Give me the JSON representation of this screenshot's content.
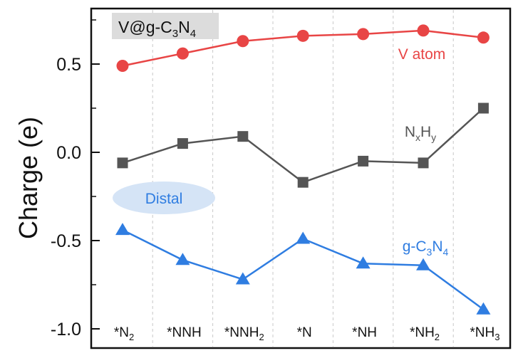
{
  "chart_data": {
    "type": "line",
    "title": "V@g-C3N4",
    "title_parts": {
      "main": "V@g-C",
      "sub1": "3",
      "mid": "N",
      "sub2": "4"
    },
    "xlabel": "",
    "ylabel": "Charge (e)",
    "ylim": [
      -1.05,
      0.8
    ],
    "yticks": [
      0.5,
      0.0,
      -0.5,
      -1.0
    ],
    "ytick_labels": [
      "0.5",
      "0.0",
      "-0.5",
      "-1.0"
    ],
    "categories": [
      "*N2",
      "*NNH",
      "*NNH2",
      "*N",
      "*NH",
      "*NH2",
      "*NH3"
    ],
    "category_parts": [
      {
        "main": "*N",
        "sub": "2"
      },
      {
        "main": "*NNH",
        "sub": ""
      },
      {
        "main": "*NNH",
        "sub": "2"
      },
      {
        "main": "*N",
        "sub": ""
      },
      {
        "main": "*NH",
        "sub": ""
      },
      {
        "main": "*NH",
        "sub": "2"
      },
      {
        "main": "*NH",
        "sub": "3"
      }
    ],
    "annotation": "Distal",
    "series": [
      {
        "name": "V atom",
        "label_parts": [
          {
            "t": "V atom",
            "sub": false
          }
        ],
        "color": "#e84545",
        "marker": "circle",
        "values": [
          0.49,
          0.56,
          0.63,
          0.66,
          0.67,
          0.69,
          0.65
        ]
      },
      {
        "name": "NxHy",
        "label_parts": [
          {
            "t": "N",
            "sub": false
          },
          {
            "t": "x",
            "sub": true
          },
          {
            "t": "H",
            "sub": false
          },
          {
            "t": "y",
            "sub": true
          }
        ],
        "color": "#555555",
        "marker": "square",
        "values": [
          -0.06,
          0.05,
          0.09,
          -0.17,
          -0.05,
          -0.06,
          0.25
        ]
      },
      {
        "name": "g-C3N4",
        "label_parts": [
          {
            "t": "g-C",
            "sub": false
          },
          {
            "t": "3",
            "sub": true
          },
          {
            "t": "N",
            "sub": false
          },
          {
            "t": "4",
            "sub": true
          }
        ],
        "color": "#2f7de1",
        "marker": "triangle",
        "values": [
          -0.44,
          -0.61,
          -0.72,
          -0.49,
          -0.63,
          -0.64,
          -0.89
        ]
      }
    ]
  }
}
